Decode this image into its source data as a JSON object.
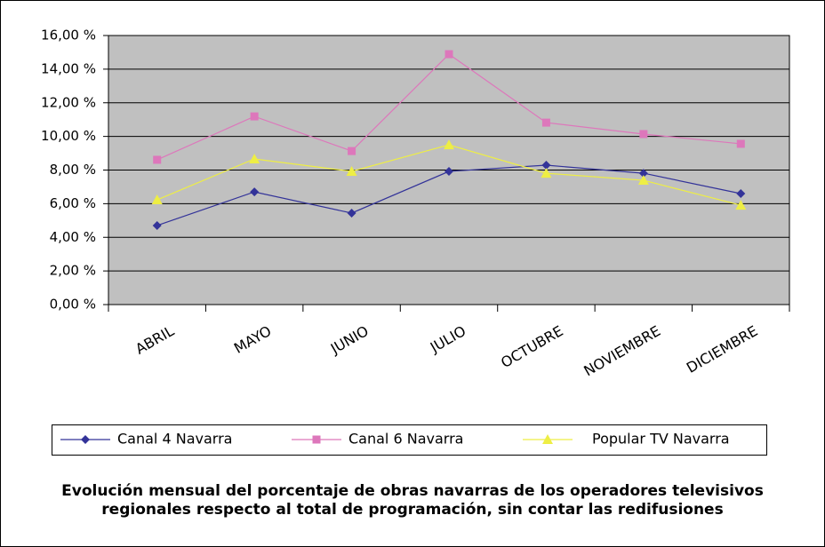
{
  "chart_data": {
    "type": "line",
    "title": [
      "Evolución mensual del porcentaje de obras navarras de los operadores televisivos",
      "regionales respecto al total de programación, sin contar las redifusiones"
    ],
    "categories": [
      "ABRIL",
      "MAYO",
      "JUNIO",
      "JULIO",
      "OCTUBRE",
      "NOVIEMBRE",
      "DICIEMBRE"
    ],
    "series": [
      {
        "name": "Canal 4 Navarra",
        "color": "#333399",
        "marker": "diamond",
        "values": [
          4.7,
          6.7,
          5.44,
          7.92,
          8.29,
          7.81,
          6.6
        ]
      },
      {
        "name": "Canal 6 Navarra",
        "color": "#dd77bb",
        "marker": "square",
        "values": [
          8.61,
          11.19,
          9.13,
          14.89,
          10.82,
          10.14,
          9.56
        ]
      },
      {
        "name": "Popular TV Navarra",
        "color": "#eeee44",
        "marker": "triangle",
        "values": [
          6.23,
          8.66,
          7.92,
          9.5,
          7.81,
          7.39,
          5.91
        ]
      }
    ],
    "ylim": [
      0,
      16
    ],
    "yticks": [
      {
        "value": 0,
        "label": "0,00 %"
      },
      {
        "value": 2,
        "label": "2,00 %"
      },
      {
        "value": 4,
        "label": "4,00 %"
      },
      {
        "value": 6,
        "label": "6,00 %"
      },
      {
        "value": 8,
        "label": "8,00 %"
      },
      {
        "value": 10,
        "label": "10,00 %"
      },
      {
        "value": 12,
        "label": "12,00 %"
      },
      {
        "value": 14,
        "label": "14,00 %"
      },
      {
        "value": 16,
        "label": "16,00 %"
      }
    ],
    "grid": true,
    "plot_background": "#c0c0c0"
  }
}
